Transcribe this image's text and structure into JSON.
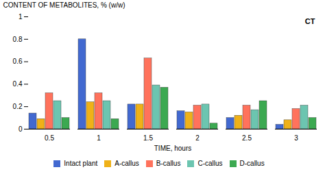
{
  "chart_data": {
    "type": "bar",
    "title": "CT",
    "xlabel": "TIME, hours",
    "ylabel": "CONTENT OF METABOLITES, % (w/w)",
    "categories": [
      "0.5",
      "1",
      "1.5",
      "2",
      "2.5",
      "3"
    ],
    "series": [
      {
        "name": "Intact plant",
        "values": [
          0.14,
          0.8,
          0.22,
          0.16,
          0.1,
          0.04
        ]
      },
      {
        "name": "A-callus",
        "values": [
          0.09,
          0.24,
          0.22,
          0.15,
          0.12,
          0.08
        ]
      },
      {
        "name": "B-callus",
        "values": [
          0.32,
          0.32,
          0.63,
          0.21,
          0.21,
          0.18
        ]
      },
      {
        "name": "C-callus",
        "values": [
          0.25,
          0.25,
          0.39,
          0.22,
          0.17,
          0.21
        ]
      },
      {
        "name": "D-callus",
        "values": [
          0.1,
          0.09,
          0.37,
          0.05,
          0.25,
          0.1
        ]
      }
    ],
    "ylim": [
      0,
      1.0
    ],
    "yticks": [
      0,
      0.2,
      0.4,
      0.6,
      0.8,
      1.0
    ],
    "legend": "bottom"
  }
}
